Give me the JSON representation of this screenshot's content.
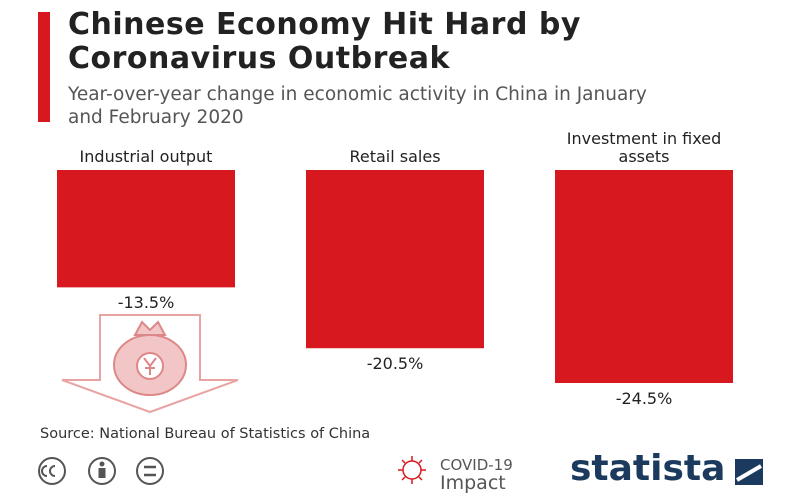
{
  "chart_data": {
    "type": "bar",
    "title": "Chinese Economy Hit Hard by Coronavirus Outbreak",
    "subtitle": "Year-over-year change in economic activity in China in January and February 2020",
    "categories": [
      "Industrial output",
      "Retail sales",
      "Investment in fixed assets"
    ],
    "values": [
      -13.5,
      -20.5,
      -24.5
    ],
    "value_labels": [
      "-13.5%",
      "-20.5%",
      "-24.5%"
    ],
    "color": "#d7191f",
    "source": "Source: National Bureau of Statistics of China"
  },
  "footer": {
    "badge_line1": "COVID-19",
    "badge_line2": "Impact",
    "brand": "statista"
  }
}
